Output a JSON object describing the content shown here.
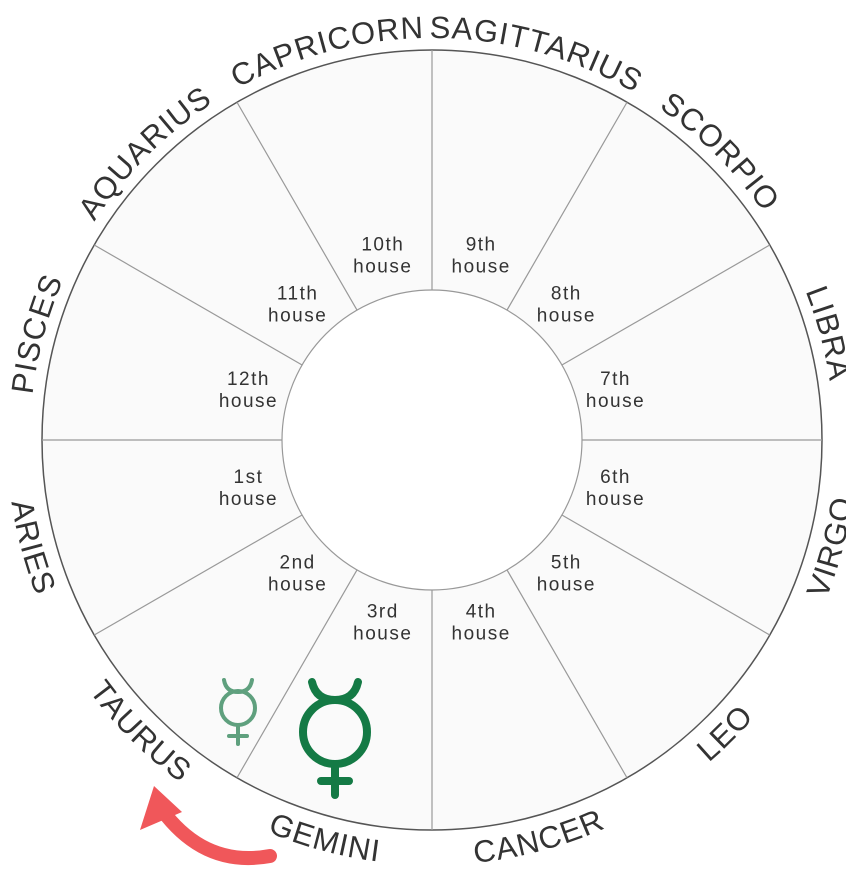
{
  "signs": [
    "ARIES",
    "TAURUS",
    "GEMINI",
    "CANCER",
    "LEO",
    "VIRGO",
    "LIBRA",
    "SCORPIO",
    "SAGITTARIUS",
    "CAPRICORN",
    "AQUARIUS",
    "PISCES"
  ],
  "houses": [
    {
      "label": "1st",
      "word": "house"
    },
    {
      "label": "2nd",
      "word": "house"
    },
    {
      "label": "3rd",
      "word": "house"
    },
    {
      "label": "4th",
      "word": "house"
    },
    {
      "label": "5th",
      "word": "house"
    },
    {
      "label": "6th",
      "word": "house"
    },
    {
      "label": "7th",
      "word": "house"
    },
    {
      "label": "8th",
      "word": "house"
    },
    {
      "label": "9th",
      "word": "house"
    },
    {
      "label": "10th",
      "word": "house"
    },
    {
      "label": "11th",
      "word": "house"
    },
    {
      "label": "12th",
      "word": "house"
    }
  ]
}
